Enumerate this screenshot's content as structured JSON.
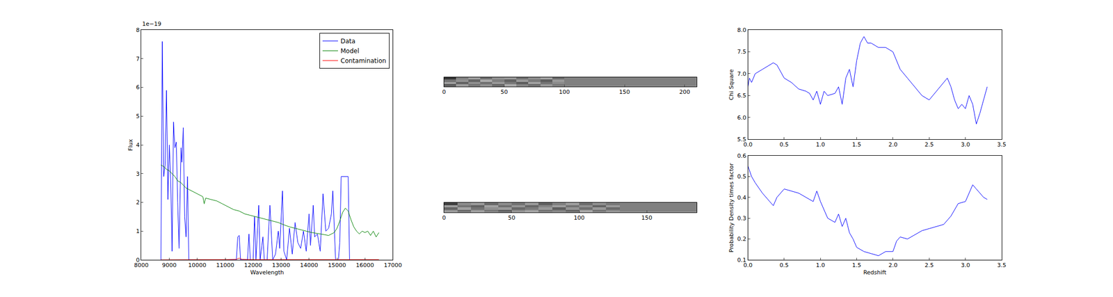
{
  "chart_data": [
    {
      "type": "line",
      "x_label": "Wavelength",
      "y_label": "Flux",
      "annotations": [
        "1e−19"
      ],
      "xlim": [
        8000,
        17000
      ],
      "xticks": [
        8000,
        9000,
        10000,
        11000,
        12000,
        13000,
        14000,
        15000,
        16000,
        17000
      ],
      "ylim": [
        0,
        8
      ],
      "yticks": [
        0,
        1,
        2,
        3,
        4,
        5,
        6,
        7,
        8
      ],
      "legend": "upper right",
      "series": [
        {
          "name": "Data",
          "color": "#0000ff",
          "x": [
            8700,
            8750,
            8800,
            8850,
            8900,
            8950,
            9000,
            9050,
            9100,
            9150,
            9200,
            9250,
            9300,
            9350,
            9420,
            9450,
            9500,
            9550,
            9600,
            9650,
            9700,
            10000,
            11000,
            11400,
            11450,
            11500,
            11550,
            11800,
            11850,
            11900,
            12000,
            12050,
            12100,
            12200,
            12250,
            12350,
            12400,
            12500,
            12600,
            12700,
            12800,
            12900,
            12950,
            13050,
            13100,
            13200,
            13300,
            13400,
            13500,
            13600,
            13700,
            13800,
            13900,
            14000,
            14050,
            14150,
            14200,
            14300,
            14400,
            14450,
            14500,
            14600,
            14700,
            14800,
            14850,
            14950,
            15050,
            15100,
            15150,
            15350,
            15400,
            15450,
            15500
          ],
          "values": [
            0,
            7.6,
            2.9,
            3.3,
            5.9,
            2.1,
            4.0,
            2.8,
            0.3,
            4.8,
            3.9,
            4.1,
            2.0,
            0.4,
            3.9,
            3.4,
            4.6,
            1.5,
            0.8,
            2.9,
            0,
            0,
            0,
            0,
            0.8,
            0.85,
            0,
            0,
            0.9,
            0,
            0,
            1.5,
            0,
            1.9,
            0,
            0.8,
            0,
            0,
            1.9,
            0,
            0.2,
            1.0,
            0.4,
            2.4,
            0.3,
            0,
            1.1,
            0.2,
            1.3,
            0.6,
            0.4,
            1.0,
            0.3,
            1.6,
            0.5,
            1.9,
            0.8,
            0.9,
            0.3,
            1.2,
            2.3,
            1.0,
            1.1,
            1.6,
            2.4,
            0,
            0,
            0.6,
            2.9,
            2.9,
            2.9,
            0,
            0
          ]
        },
        {
          "name": "Model",
          "color": "#008000",
          "x": [
            8700,
            8800,
            8900,
            9000,
            9100,
            9200,
            9300,
            9400,
            9500,
            9600,
            9700,
            9800,
            9900,
            10000,
            10100,
            10200,
            10250,
            10300,
            10500,
            10700,
            10900,
            11100,
            11300,
            11500,
            11700,
            11900,
            12100,
            12300,
            12500,
            12700,
            12900,
            13100,
            13300,
            13500,
            13700,
            13900,
            14100,
            14300,
            14500,
            14700,
            14900,
            15000,
            15100,
            15200,
            15300,
            15400,
            15500,
            15600,
            15700,
            15800,
            15900,
            16000,
            16100,
            16200,
            16300,
            16400,
            16500
          ],
          "values": [
            3.3,
            3.25,
            3.15,
            3.1,
            3.0,
            2.9,
            2.75,
            2.7,
            2.6,
            2.5,
            2.45,
            2.4,
            2.35,
            2.3,
            2.25,
            2.2,
            1.95,
            2.15,
            2.1,
            2.05,
            1.95,
            1.85,
            1.75,
            1.7,
            1.6,
            1.55,
            1.5,
            1.45,
            1.4,
            1.35,
            1.3,
            1.22,
            1.15,
            1.1,
            1.05,
            1.0,
            0.95,
            0.92,
            0.88,
            0.85,
            0.95,
            1.1,
            1.35,
            1.65,
            1.8,
            1.7,
            1.4,
            1.15,
            1.0,
            0.9,
            1.0,
            0.95,
            1.0,
            0.85,
            1.0,
            0.8,
            0.95
          ]
        },
        {
          "name": "Contamination",
          "color": "#ff0000",
          "x": [
            8700,
            10000,
            11000,
            11400,
            11500,
            11600,
            12000,
            13000,
            14000,
            15000,
            16000,
            16500
          ],
          "values": [
            0,
            0,
            0.01,
            0.02,
            0.06,
            0.02,
            0.01,
            0.01,
            0.01,
            0.01,
            0.01,
            0.01
          ]
        }
      ]
    },
    {
      "type": "heatmap",
      "tick_labels": "x",
      "xlim": [
        0,
        210
      ],
      "xticks": [
        0,
        50,
        100,
        150,
        200
      ],
      "zlim": [
        0,
        1
      ],
      "x": [
        5,
        15,
        25,
        35,
        45,
        55,
        65,
        75,
        85,
        95,
        105,
        115,
        125,
        135,
        145,
        155,
        165,
        175,
        185,
        195,
        205
      ],
      "y": [
        1,
        3,
        5,
        7
      ],
      "z": [
        [
          0.35,
          0.6,
          0.45,
          0.55,
          0.4,
          0.65,
          0.5,
          0.42,
          0.58,
          0.48,
          0.5,
          0.5,
          0.5,
          0.5,
          0.5,
          0.5,
          0.5,
          0.5,
          0.5,
          0.5,
          0.5
        ],
        [
          0.62,
          0.38,
          0.56,
          0.44,
          0.6,
          0.47,
          0.36,
          0.63,
          0.45,
          0.55,
          0.5,
          0.5,
          0.5,
          0.5,
          0.5,
          0.5,
          0.5,
          0.5,
          0.5,
          0.5,
          0.5
        ],
        [
          0.45,
          0.57,
          0.4,
          0.66,
          0.5,
          0.39,
          0.6,
          0.48,
          0.37,
          0.6,
          0.5,
          0.5,
          0.5,
          0.5,
          0.5,
          0.5,
          0.5,
          0.5,
          0.5,
          0.5,
          0.5
        ],
        [
          0.2,
          0.5,
          0.62,
          0.43,
          0.57,
          0.6,
          0.44,
          0.55,
          0.64,
          0.42,
          0.5,
          0.5,
          0.5,
          0.5,
          0.5,
          0.5,
          0.5,
          0.5,
          0.5,
          0.5,
          0.5
        ]
      ]
    },
    {
      "type": "heatmap",
      "tick_labels": "x",
      "xlim": [
        0,
        187
      ],
      "xticks": [
        0,
        50,
        100,
        150
      ],
      "zlim": [
        0,
        1
      ],
      "x": [
        5,
        15,
        25,
        35,
        45,
        55,
        65,
        75,
        85,
        95,
        105,
        115,
        125,
        135,
        145,
        155,
        165,
        175,
        185
      ],
      "y": [
        1,
        3,
        5,
        7
      ],
      "z": [
        [
          0.58,
          0.42,
          0.6,
          0.47,
          0.38,
          0.55,
          0.62,
          0.45,
          0.5,
          0.4,
          0.63,
          0.46,
          0.55,
          0.5,
          0.5,
          0.5,
          0.5,
          0.5,
          0.5
        ],
        [
          0.4,
          0.63,
          0.45,
          0.57,
          0.6,
          0.41,
          0.48,
          0.6,
          0.37,
          0.58,
          0.44,
          0.6,
          0.42,
          0.5,
          0.5,
          0.5,
          0.5,
          0.5,
          0.5
        ],
        [
          0.62,
          0.46,
          0.38,
          0.64,
          0.44,
          0.58,
          0.4,
          0.52,
          0.62,
          0.45,
          0.56,
          0.39,
          0.6,
          0.5,
          0.5,
          0.5,
          0.5,
          0.5,
          0.5
        ],
        [
          0.25,
          0.55,
          0.6,
          0.42,
          0.55,
          0.45,
          0.6,
          0.38,
          0.5,
          0.62,
          0.43,
          0.56,
          0.47,
          0.5,
          0.5,
          0.5,
          0.5,
          0.5,
          0.5
        ]
      ]
    },
    {
      "type": "line",
      "y_label": "Chi Square",
      "xlim": [
        0,
        3.5
      ],
      "xticks": [
        {
          "value": 0,
          "label": "0.0"
        },
        0.5,
        {
          "value": 1,
          "label": "1.0"
        },
        1.5,
        {
          "value": 2,
          "label": "2.0"
        },
        2.5,
        {
          "value": 3,
          "label": "3.0"
        },
        3.5
      ],
      "ylim": [
        5.5,
        8
      ],
      "yticks": [
        5.5,
        {
          "value": 6,
          "label": "6.0"
        },
        6.5,
        {
          "value": 7,
          "label": "7.0"
        },
        7.5,
        {
          "value": 8,
          "label": "8.0"
        }
      ],
      "series": [
        {
          "color": "#0000ff",
          "x": [
            0,
            0.02,
            0.05,
            0.1,
            0.2,
            0.3,
            0.35,
            0.4,
            0.5,
            0.6,
            0.7,
            0.8,
            0.85,
            0.9,
            0.95,
            1.0,
            1.05,
            1.1,
            1.2,
            1.25,
            1.3,
            1.35,
            1.4,
            1.45,
            1.5,
            1.55,
            1.6,
            1.65,
            1.7,
            1.8,
            1.9,
            2.0,
            2.05,
            2.1,
            2.2,
            2.3,
            2.4,
            2.5,
            2.55,
            2.6,
            2.7,
            2.75,
            2.8,
            2.85,
            2.9,
            2.95,
            3.0,
            3.05,
            3.1,
            3.15,
            3.2,
            3.25,
            3.3
          ],
          "values": [
            6.7,
            6.9,
            6.8,
            7.0,
            7.1,
            7.2,
            7.25,
            7.2,
            6.9,
            6.8,
            6.65,
            6.6,
            6.55,
            6.4,
            6.6,
            6.3,
            6.6,
            6.5,
            6.55,
            6.7,
            6.3,
            6.9,
            7.1,
            6.7,
            7.3,
            7.7,
            7.85,
            7.7,
            7.7,
            7.6,
            7.6,
            7.5,
            7.3,
            7.1,
            6.9,
            6.7,
            6.5,
            6.4,
            6.5,
            6.6,
            6.8,
            6.9,
            6.7,
            6.4,
            6.2,
            6.3,
            6.2,
            6.5,
            6.3,
            5.85,
            6.1,
            6.4,
            6.7
          ]
        }
      ]
    },
    {
      "type": "line",
      "x_label": "Redshift",
      "y_label": "Probability Density times factor",
      "xlim": [
        0,
        3.5
      ],
      "xticks": [
        {
          "value": 0,
          "label": "0.0"
        },
        0.5,
        {
          "value": 1,
          "label": "1.0"
        },
        1.5,
        {
          "value": 2,
          "label": "2.0"
        },
        2.5,
        {
          "value": 3,
          "label": "3.0"
        },
        3.5
      ],
      "ylim": [
        0.1,
        0.6
      ],
      "yticks": [
        0.1,
        0.2,
        0.3,
        0.4,
        0.5,
        0.6
      ],
      "series": [
        {
          "color": "#0000ff",
          "x": [
            0,
            0.05,
            0.1,
            0.2,
            0.3,
            0.35,
            0.4,
            0.5,
            0.6,
            0.7,
            0.8,
            0.9,
            0.95,
            1.0,
            1.05,
            1.1,
            1.2,
            1.25,
            1.3,
            1.35,
            1.4,
            1.45,
            1.5,
            1.6,
            1.7,
            1.8,
            1.9,
            2.0,
            2.05,
            2.1,
            2.2,
            2.3,
            2.4,
            2.5,
            2.6,
            2.7,
            2.8,
            2.85,
            2.9,
            3.0,
            3.05,
            3.1,
            3.15,
            3.2,
            3.25,
            3.3
          ],
          "values": [
            0.55,
            0.5,
            0.47,
            0.42,
            0.38,
            0.36,
            0.4,
            0.44,
            0.43,
            0.42,
            0.4,
            0.38,
            0.43,
            0.38,
            0.34,
            0.3,
            0.28,
            0.32,
            0.26,
            0.3,
            0.23,
            0.2,
            0.16,
            0.14,
            0.13,
            0.12,
            0.14,
            0.14,
            0.19,
            0.21,
            0.2,
            0.22,
            0.24,
            0.25,
            0.26,
            0.27,
            0.31,
            0.34,
            0.37,
            0.38,
            0.42,
            0.46,
            0.44,
            0.42,
            0.4,
            0.39
          ]
        }
      ]
    }
  ]
}
